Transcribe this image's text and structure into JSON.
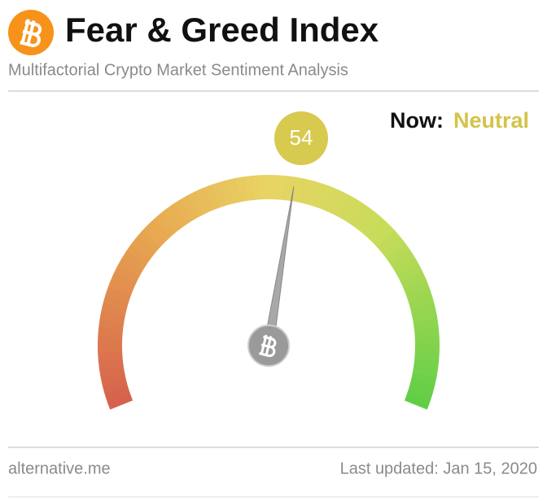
{
  "chart_data": {
    "type": "gauge",
    "title": "Fear & Greed Index",
    "subtitle": "Multifactorial Crypto Market Sentiment Analysis",
    "now_label": "Now:",
    "classification": "Neutral",
    "value": 54,
    "ylim": [
      0,
      100
    ],
    "color": "#d8c94f",
    "source": "alternative.me",
    "updated": "Last updated: Jan 15, 2020"
  }
}
